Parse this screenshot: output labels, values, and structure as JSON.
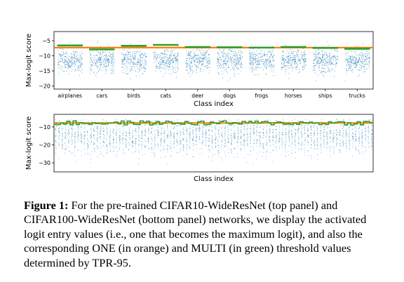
{
  "chart_data": [
    {
      "type": "scatter",
      "xlabel": "Class index",
      "ylabel": "Max-logit score",
      "categories": [
        "airplanes",
        "cars",
        "birds",
        "cats",
        "deer",
        "dogs",
        "frogs",
        "horses",
        "ships",
        "trucks"
      ],
      "yticks": [
        -5,
        -10,
        -15,
        -20
      ],
      "ylim": [
        -21,
        -2
      ],
      "one_threshold": -7.3,
      "multi_thresholds": [
        -6.6,
        -7.9,
        -6.7,
        -6.4,
        -7.1,
        -7.2,
        -7.3,
        -7.1,
        -7.4,
        -7.7
      ],
      "grid": false
    },
    {
      "type": "scatter",
      "xlabel": "Class index",
      "ylabel": "Max-logit score",
      "num_classes": 100,
      "yticks": [
        -10,
        -20,
        -30
      ],
      "ylim": [
        -35,
        -3
      ],
      "one_threshold": -7.8,
      "grid": false
    }
  ],
  "caption": {
    "label": "Figure 1:",
    "part1": " For the pre-trained CIFAR10-WideResNet (top panel) and CIFAR100-WideResNet (bottom panel) networks, we display the activated logit entry values (i.e., one that becomes the maximum logit), and also the corresponding ",
    "one": "ONE",
    "part2": " (in orange) and ",
    "multi": "MULTI",
    "part3": " (in green) threshold values determined by TPR-95."
  },
  "colors": {
    "points": "#1f77b4",
    "one": "#ff7f0e",
    "multi": "#2ca02c"
  }
}
